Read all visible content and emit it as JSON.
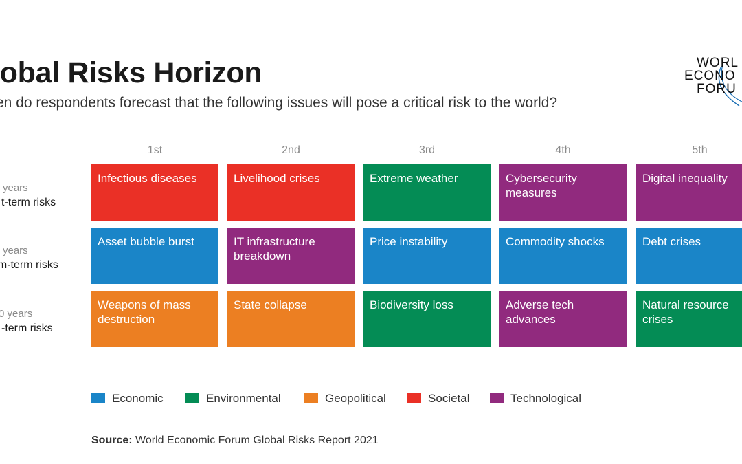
{
  "title": "lobal Risks Horizon",
  "subtitle": "en do respondents forecast that the following issues will pose a critical risk to the world?",
  "logo": {
    "line1": "WORL",
    "line2": "ECONO",
    "line3": "FORU",
    "icon": "wef-arc-logo"
  },
  "colors": {
    "Economic": "#1a85c8",
    "Environmental": "#048c55",
    "Geopolitical": "#ec7f22",
    "Societal": "#ea3026",
    "Technological": "#912a7e"
  },
  "chart_data": {
    "type": "table",
    "columns": [
      "1st",
      "2nd",
      "3rd",
      "4th",
      "5th"
    ],
    "rows": [
      {
        "years": " years",
        "term": "t-term risks",
        "cells": [
          {
            "label": "Infectious diseases",
            "category": "Societal"
          },
          {
            "label": "Livelihood crises",
            "category": "Societal"
          },
          {
            "label": "Extreme weather",
            "category": "Environmental"
          },
          {
            "label": "Cybersecurity measures",
            "category": "Technological"
          },
          {
            "label": "Digital inequality",
            "category": "Technological"
          }
        ]
      },
      {
        "years": " years",
        "term": "um-term risks",
        "cells": [
          {
            "label": "Asset bubble burst",
            "category": "Economic"
          },
          {
            "label": "IT infrastructure breakdown",
            "category": "Technological"
          },
          {
            "label": "Price instability",
            "category": "Economic"
          },
          {
            "label": "Commodity shocks",
            "category": "Economic"
          },
          {
            "label": "Debt crises",
            "category": "Economic"
          }
        ]
      },
      {
        "years": "0 years",
        "term": "-term risks",
        "cells": [
          {
            "label": "Weapons of mass destruction",
            "category": "Geopolitical"
          },
          {
            "label": "State collapse",
            "category": "Geopolitical"
          },
          {
            "label": "Biodiversity loss",
            "category": "Environmental"
          },
          {
            "label": "Adverse tech advances",
            "category": "Technological"
          },
          {
            "label": "Natural resource crises",
            "category": "Environmental"
          }
        ]
      }
    ],
    "legend": [
      "Economic",
      "Environmental",
      "Geopolitical",
      "Societal",
      "Technological"
    ],
    "legend_position": "bottom"
  },
  "source": {
    "label": "Source:",
    "text": " World Economic Forum Global Risks Report 2021"
  }
}
